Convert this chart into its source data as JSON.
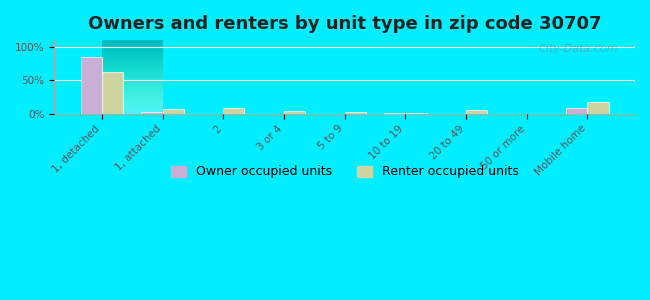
{
  "title": "Owners and renters by unit type in zip code 30707",
  "categories": [
    "1, detached",
    "1, attached",
    "2",
    "3 or 4",
    "5 to 9",
    "10 to 19",
    "20 to 49",
    "50 or more",
    "Mobile home"
  ],
  "owner_values": [
    85,
    3,
    0,
    0,
    0,
    0.5,
    0,
    0,
    8
  ],
  "renter_values": [
    63,
    7,
    9,
    4,
    2,
    1,
    5,
    0,
    17
  ],
  "owner_color": "#c9aed6",
  "renter_color": "#cdd4a0",
  "background_color": "#00eeff",
  "plot_bg_color_top": "#e8f5e0",
  "plot_bg_color_bottom": "#f5fae8",
  "yticks": [
    0,
    50,
    100
  ],
  "ylim": [
    0,
    110
  ],
  "watermark": "City-Data.com",
  "legend_owner": "Owner occupied units",
  "legend_renter": "Renter occupied units",
  "title_fontsize": 13,
  "tick_fontsize": 7.5,
  "legend_fontsize": 9
}
